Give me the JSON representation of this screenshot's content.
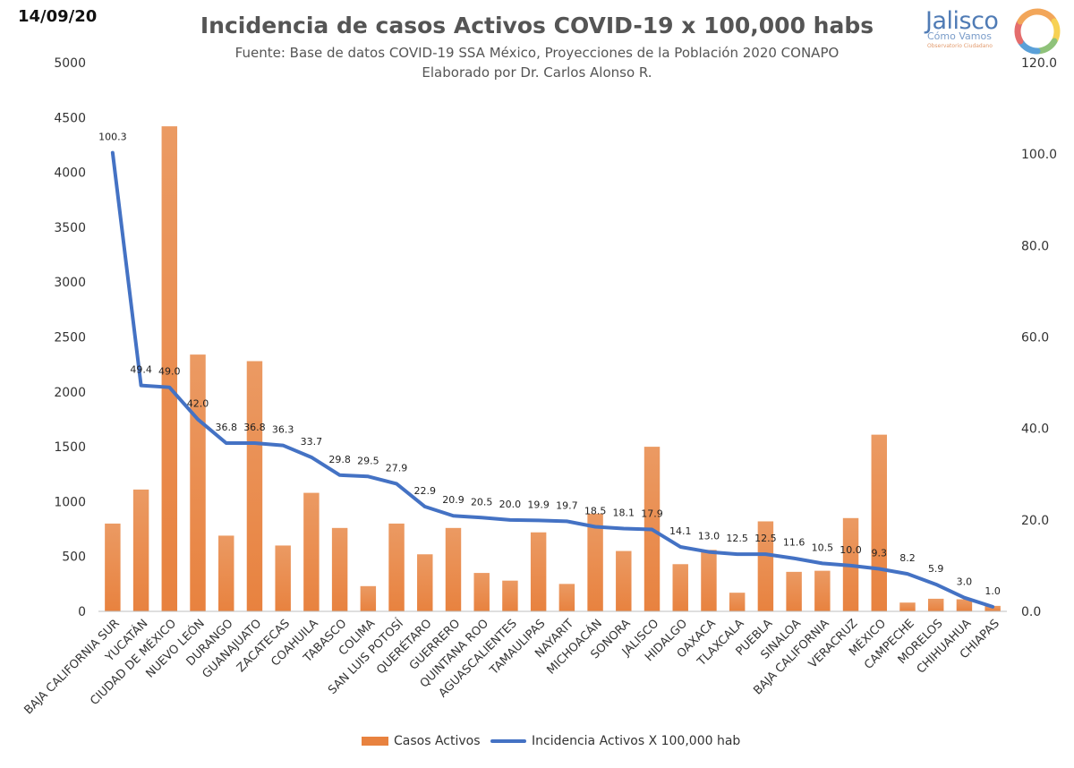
{
  "header": {
    "date": "14/09/20",
    "title": "Incidencia de casos Activos COVID-19 x 100,000 habs",
    "source": "Fuente: Base de datos COVID-19 SSA México, Proyecciones de la Población 2020 CONAPO",
    "author": "Elaborado por Dr. Carlos Alonso R."
  },
  "logo": {
    "name": "Jalisco",
    "line2": "Cómo Vamos",
    "tagline": "Observatorio Ciudadano",
    "colors": [
      "#f2a65a",
      "#f7d154",
      "#8fc27a",
      "#5aa0d8",
      "#e46d6d",
      "#f2a65a"
    ]
  },
  "chart_data": {
    "type": "bar",
    "categories": [
      "BAJA CALIFORNIA SUR",
      "YUCATÁN",
      "CIUDAD DE MÉXICO",
      "NUEVO LEÓN",
      "DURANGO",
      "GUANAJUATO",
      "ZACATECAS",
      "COAHUILA",
      "TABASCO",
      "COLIMA",
      "SAN LUIS POTOSÍ",
      "QUERÉTARO",
      "GUERRERO",
      "QUINTANA ROO",
      "AGUASCALIENTES",
      "TAMAULIPAS",
      "NAYARIT",
      "MICHOACÁN",
      "SONORA",
      "JALISCO",
      "HIDALGO",
      "OAXACA",
      "TLAXCALA",
      "PUEBLA",
      "SINALOA",
      "BAJA CALIFORNIA",
      "VERACRUZ",
      "MÉXICO",
      "CAMPECHE",
      "MORELOS",
      "CHIHUAHUA",
      "CHIAPAS"
    ],
    "series": [
      {
        "name": "Casos Activos",
        "type": "bar",
        "axis": "left",
        "color": "#e8823f",
        "values": [
          800,
          1110,
          4420,
          2340,
          690,
          2280,
          600,
          1080,
          760,
          230,
          800,
          520,
          760,
          350,
          280,
          720,
          250,
          890,
          550,
          1500,
          430,
          560,
          170,
          820,
          360,
          370,
          850,
          1610,
          80,
          115,
          110,
          50
        ]
      },
      {
        "name": "Incidencia Activos X 100,000 hab",
        "type": "line",
        "axis": "right",
        "color": "#4472c4",
        "values": [
          100.3,
          49.4,
          49.0,
          42.0,
          36.8,
          36.8,
          36.3,
          33.7,
          29.8,
          29.5,
          27.9,
          22.9,
          20.9,
          20.5,
          20.0,
          19.9,
          19.7,
          18.5,
          18.1,
          17.9,
          14.1,
          13.0,
          12.5,
          12.5,
          11.6,
          10.5,
          10.0,
          9.3,
          8.2,
          5.9,
          3.0,
          1.0
        ],
        "labels": [
          "100.3",
          "49.4",
          "49.0",
          "42.0",
          "36.8",
          "36.8",
          "36.3",
          "33.7",
          "29.8",
          "29.5",
          "27.9",
          "22.9",
          "20.9",
          "20.5",
          "20.0",
          "19.9",
          "19.7",
          "18.5",
          "18.1",
          "17.9",
          "14.1",
          "13.0",
          "12.5",
          "12.5",
          "11.6",
          "10.5",
          "10.0",
          "9.3",
          "8.2",
          "5.9",
          "3.0",
          "1.0"
        ]
      }
    ],
    "ylim_left": [
      0,
      5000
    ],
    "yticks_left": [
      "0",
      "500",
      "1000",
      "1500",
      "2000",
      "2500",
      "3000",
      "3500",
      "4000",
      "4500",
      "5000"
    ],
    "ylim_right": [
      0,
      120
    ],
    "yticks_right": [
      "0.0",
      "20.0",
      "40.0",
      "60.0",
      "80.0",
      "100.0",
      "120.0"
    ],
    "grid": false,
    "legend": "bottom"
  }
}
